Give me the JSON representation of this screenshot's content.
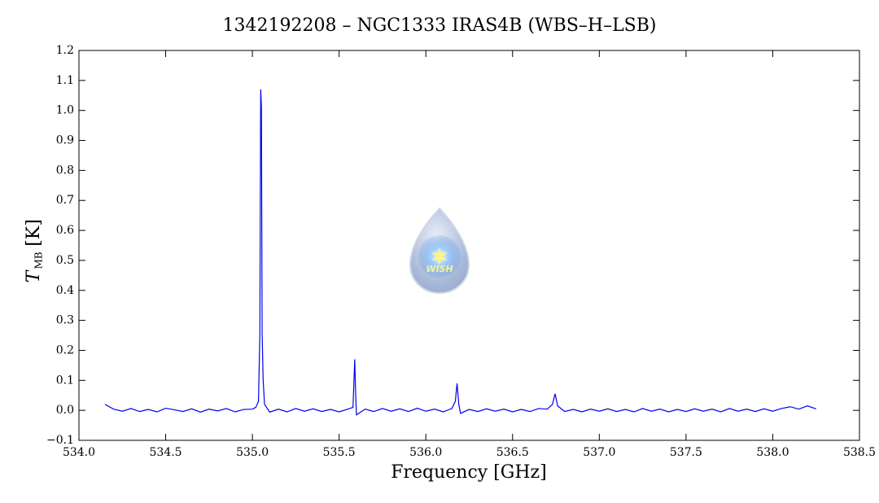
{
  "chart_data": {
    "type": "line",
    "title": "1342192208 – NGC1333 IRAS4B (WBS–H–LSB)",
    "x_label": "Frequency [GHz]",
    "y_label": {
      "symbol": "T",
      "subscript": "MB",
      "unit": "[K]"
    },
    "watermark": "WISH",
    "color": "#0000ee",
    "xlim": [
      534.0,
      538.5
    ],
    "xticks": [
      {
        "value": 534,
        "label": "534.0"
      },
      534.5,
      {
        "value": 535,
        "label": "535.0"
      },
      535.5,
      {
        "value": 536,
        "label": "536.0"
      },
      536.5,
      {
        "value": 537,
        "label": "537.0"
      },
      537.5,
      {
        "value": 538,
        "label": "538.0"
      },
      538.5
    ],
    "ylim": [
      -0.1,
      1.2
    ],
    "yticks": [
      {
        "value": -0.1,
        "label": "−0.1"
      },
      {
        "value": 0,
        "label": "0.0"
      },
      0.1,
      0.2,
      0.3,
      0.4,
      0.5,
      0.6,
      0.7,
      0.8,
      0.9,
      {
        "value": 1,
        "label": "1.0"
      },
      1.1,
      1.2
    ],
    "x": [
      534.15,
      534.2,
      534.25,
      534.3,
      534.35,
      534.4,
      534.45,
      534.5,
      534.55,
      534.6,
      534.65,
      534.7,
      534.75,
      534.8,
      534.85,
      534.9,
      534.95,
      535.0,
      535.02,
      535.035,
      535.043,
      535.048,
      535.052,
      535.056,
      535.062,
      535.07,
      535.1,
      535.15,
      535.2,
      535.25,
      535.3,
      535.35,
      535.4,
      535.45,
      535.5,
      535.55,
      535.58,
      535.59,
      535.595,
      535.6,
      535.65,
      535.7,
      535.75,
      535.8,
      535.85,
      535.9,
      535.95,
      536.0,
      536.05,
      536.1,
      536.15,
      536.17,
      536.18,
      536.19,
      536.2,
      536.25,
      536.3,
      536.35,
      536.4,
      536.45,
      536.5,
      536.55,
      536.6,
      536.65,
      536.7,
      536.73,
      536.745,
      536.76,
      536.8,
      536.85,
      536.9,
      536.95,
      537.0,
      537.05,
      537.1,
      537.15,
      537.2,
      537.25,
      537.3,
      537.35,
      537.4,
      537.45,
      537.5,
      537.55,
      537.6,
      537.65,
      537.7,
      537.75,
      537.8,
      537.85,
      537.9,
      537.95,
      538.0,
      538.05,
      538.1,
      538.15,
      538.2,
      538.25
    ],
    "values": [
      0.02,
      0.004,
      -0.003,
      0.006,
      -0.004,
      0.003,
      -0.005,
      0.007,
      0.002,
      -0.004,
      0.005,
      -0.006,
      0.004,
      -0.002,
      0.006,
      -0.005,
      0.003,
      0.004,
      0.01,
      0.03,
      0.25,
      1.07,
      1.01,
      0.26,
      0.1,
      0.02,
      -0.006,
      0.004,
      -0.005,
      0.006,
      -0.003,
      0.005,
      -0.004,
      0.003,
      -0.005,
      0.004,
      0.01,
      0.17,
      0.06,
      -0.015,
      0.004,
      -0.004,
      0.006,
      -0.003,
      0.005,
      -0.004,
      0.007,
      -0.003,
      0.004,
      -0.005,
      0.006,
      0.03,
      0.09,
      0.02,
      -0.01,
      0.003,
      -0.004,
      0.005,
      -0.003,
      0.004,
      -0.005,
      0.003,
      -0.004,
      0.006,
      0.004,
      0.02,
      0.055,
      0.015,
      -0.004,
      0.003,
      -0.005,
      0.004,
      -0.003,
      0.005,
      -0.004,
      0.003,
      -0.005,
      0.006,
      -0.003,
      0.004,
      -0.005,
      0.003,
      -0.004,
      0.005,
      -0.003,
      0.004,
      -0.005,
      0.006,
      -0.003,
      0.004,
      -0.004,
      0.005,
      -0.003,
      0.006,
      0.012,
      0.004,
      0.015,
      0.005
    ]
  }
}
